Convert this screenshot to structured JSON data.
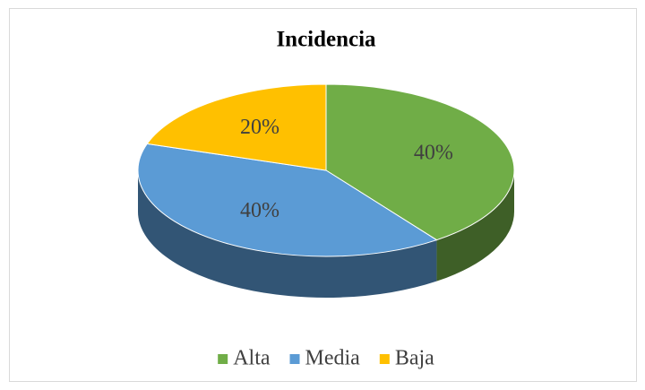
{
  "chart_data": {
    "type": "pie",
    "title": "Incidencia",
    "categories": [
      "Alta",
      "Media",
      "Baja"
    ],
    "values": [
      40,
      40,
      20
    ],
    "value_labels": [
      "40%",
      "40%",
      "20%"
    ],
    "colors": [
      "#70ad47",
      "#5b9bd5",
      "#ffc000"
    ],
    "legend": "bottom"
  }
}
